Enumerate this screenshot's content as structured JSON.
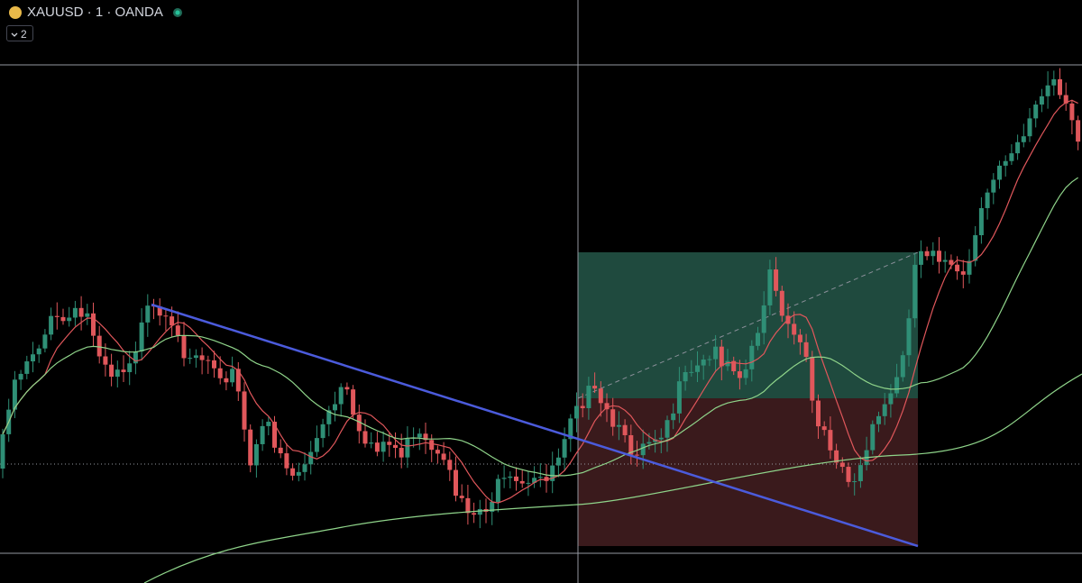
{
  "header": {
    "symbol": "XAUUSD · 1 · OANDA",
    "indicator_count": "2"
  }
}
